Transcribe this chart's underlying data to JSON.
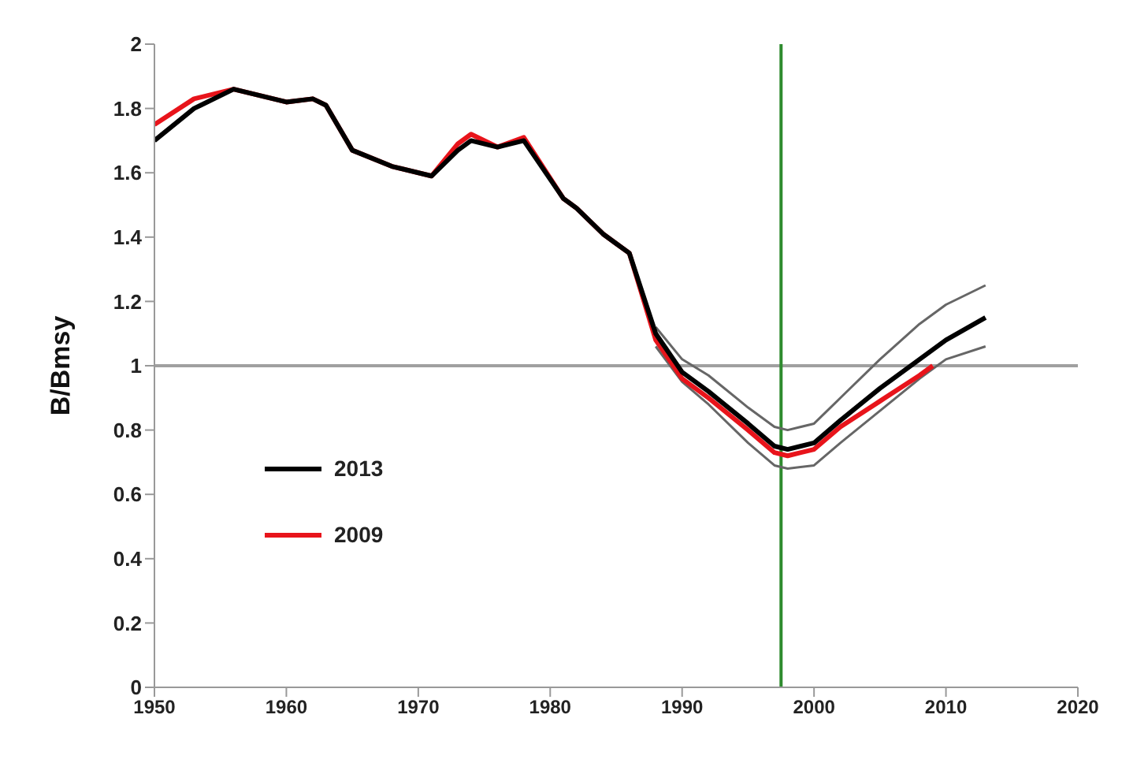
{
  "chart_data": {
    "type": "line",
    "ylabel": "B/Bmsy",
    "x": [
      1950,
      1953,
      1956,
      1960,
      1962,
      1963,
      1965,
      1968,
      1971,
      1973,
      1974,
      1976,
      1978,
      1981,
      1982,
      1984,
      1985,
      1986,
      1988,
      1990,
      1992,
      1995,
      1997,
      1998,
      2000,
      2002,
      2005,
      2008,
      2009,
      2010,
      2013
    ],
    "series": [
      {
        "name": "2013",
        "color": "#000000",
        "values": [
          1.7,
          1.8,
          1.86,
          1.82,
          1.83,
          1.81,
          1.67,
          1.62,
          1.59,
          1.67,
          1.7,
          1.68,
          1.7,
          1.52,
          1.49,
          1.41,
          1.38,
          1.35,
          1.1,
          0.98,
          0.92,
          0.82,
          0.75,
          0.74,
          0.76,
          0.83,
          0.93,
          1.02,
          1.05,
          1.08,
          1.15
        ]
      },
      {
        "name": "2009",
        "color": "#e8141b",
        "values": [
          1.75,
          1.83,
          1.86,
          1.82,
          1.83,
          1.81,
          1.67,
          1.62,
          1.59,
          1.69,
          1.72,
          1.68,
          1.71,
          1.52,
          1.49,
          1.41,
          1.38,
          1.35,
          1.08,
          0.96,
          0.9,
          0.8,
          0.73,
          0.72,
          0.74,
          0.81,
          0.89,
          0.97,
          1.0,
          null,
          null
        ]
      },
      {
        "color": "#666666",
        "values": [
          null,
          null,
          null,
          null,
          null,
          null,
          null,
          null,
          null,
          null,
          null,
          null,
          null,
          null,
          null,
          null,
          null,
          null,
          1.06,
          0.95,
          0.88,
          0.76,
          0.69,
          0.68,
          0.69,
          0.76,
          0.86,
          0.96,
          0.99,
          1.02,
          1.06
        ]
      },
      {
        "color": "#666666",
        "values": [
          null,
          null,
          null,
          null,
          null,
          null,
          null,
          null,
          null,
          null,
          null,
          null,
          null,
          null,
          null,
          null,
          null,
          null,
          1.12,
          1.02,
          0.97,
          0.87,
          0.81,
          0.8,
          0.82,
          0.9,
          1.02,
          1.13,
          1.16,
          1.19,
          1.25
        ]
      }
    ],
    "xlim": [
      1950,
      2020
    ],
    "xticks": [
      1950,
      1960,
      1970,
      1980,
      1990,
      2000,
      2010,
      2020
    ],
    "ylim": [
      0,
      2
    ],
    "yticks": [
      0,
      0.2,
      0.4,
      0.6,
      0.8,
      1,
      1.2,
      1.4,
      1.6,
      1.8,
      2
    ],
    "ref_lines": [
      {
        "axis": "y",
        "value": 1,
        "color": "#a0a0a0"
      },
      {
        "axis": "x",
        "value": 1997.5,
        "color": "#2e8b2e"
      }
    ],
    "grid": false,
    "legend": "left",
    "marker": "none",
    "line_style": "solid"
  }
}
